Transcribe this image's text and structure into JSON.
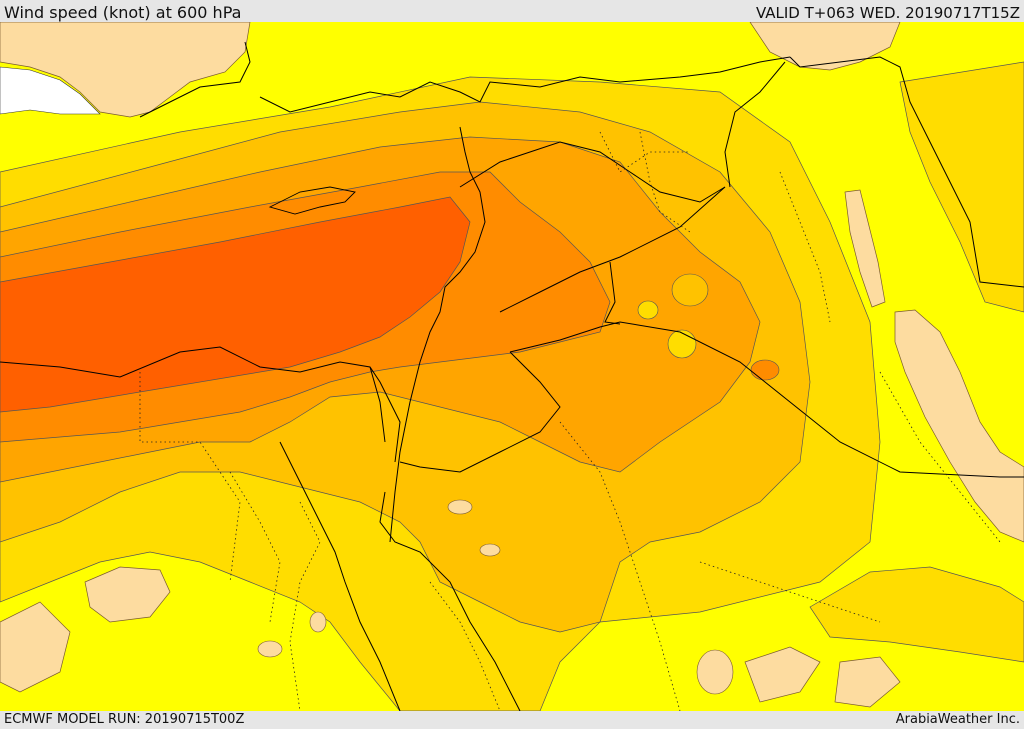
{
  "header": {
    "title": "Wind speed (knot) at 600 hPa",
    "valid": "VALID T+063 WED. 20190717T15Z"
  },
  "footer": {
    "model_run": "ECMWF MODEL RUN: 20190715T00Z",
    "credit": "ArabiaWeather Inc."
  },
  "colors": {
    "land_light": "#fddca0",
    "band_10": "#ffff00",
    "band_15": "#ffdd00",
    "band_20": "#ffc200",
    "band_25": "#ffa500",
    "band_30": "#ff8c00",
    "band_35": "#ff6000",
    "border": "#000000",
    "sea_white": "#ffffff"
  }
}
